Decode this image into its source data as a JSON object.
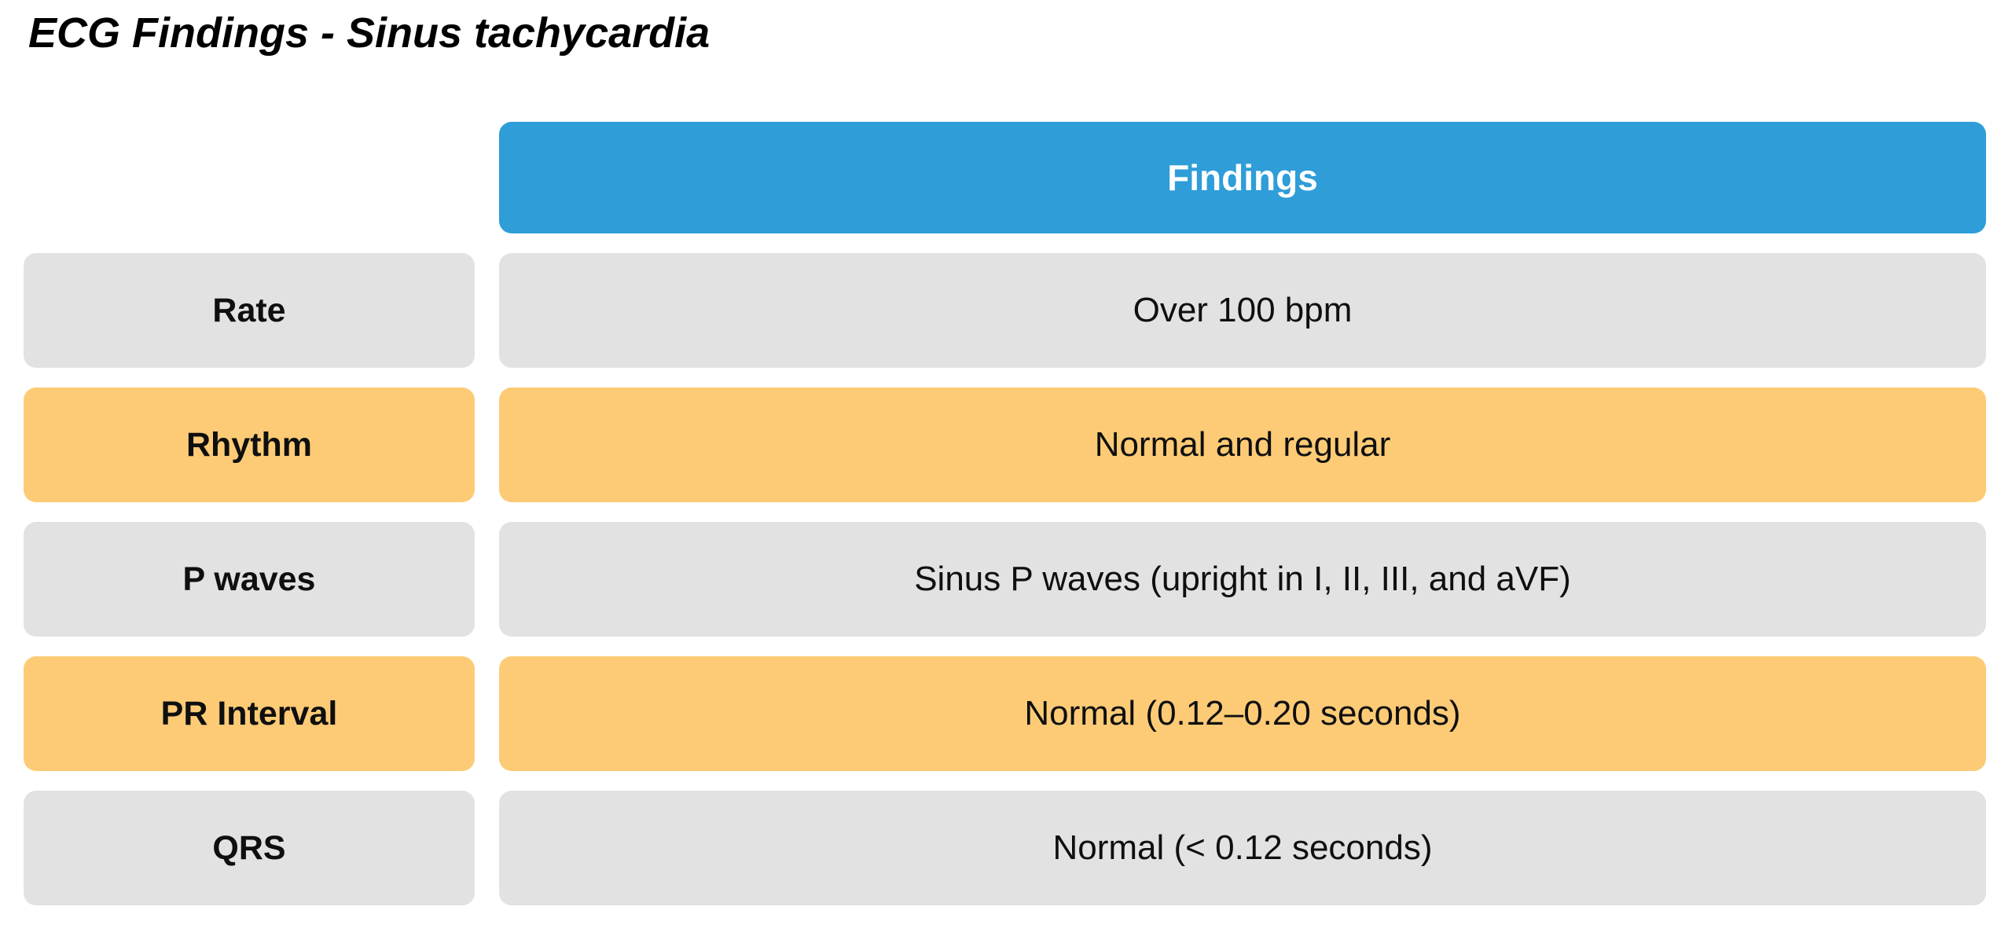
{
  "title": "ECG Findings - Sinus tachycardia",
  "table": {
    "header": "Findings",
    "rows": [
      {
        "label": "Rate",
        "value": "Over 100 bpm"
      },
      {
        "label": "Rhythm",
        "value": "Normal and regular"
      },
      {
        "label": "P waves",
        "value": "Sinus P waves (upright in I, II, III, and aVF)"
      },
      {
        "label": "PR Interval",
        "value": "Normal (0.12–0.20 seconds)"
      },
      {
        "label": "QRS",
        "value": "Normal (< 0.12 seconds)"
      }
    ]
  },
  "colors": {
    "header_blue": "#2E9DD8",
    "header_text": "#FFFFFF",
    "row_gray": "#E2E2E2",
    "row_orange": "#FDCB76",
    "text": "#0F0F0F"
  },
  "chart_data": {
    "type": "table",
    "title": "ECG Findings - Sinus tachycardia",
    "columns": [
      "",
      "Findings"
    ],
    "rows": [
      [
        "Rate",
        "Over 100 bpm"
      ],
      [
        "Rhythm",
        "Normal and regular"
      ],
      [
        "P waves",
        "Sinus P waves (upright in I, II, III, and aVF)"
      ],
      [
        "PR Interval",
        "Normal (0.12–0.20 seconds)"
      ],
      [
        "QRS",
        "Normal (< 0.12 seconds)"
      ]
    ],
    "layout_hints": {
      "header_fill": "#2E9DD8",
      "row_fills_alternating": [
        "#E2E2E2",
        "#FDCB76"
      ],
      "label_column_bold": true
    }
  }
}
